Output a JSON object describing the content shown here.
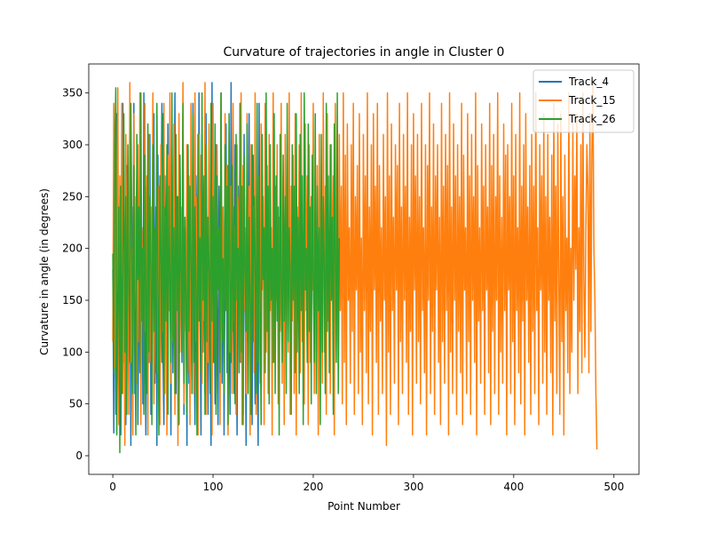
{
  "chart_data": {
    "type": "line",
    "title": "Curvature of trajectories in angle in Cluster 0",
    "xlabel": "Point Number",
    "ylabel": "Curvature in angle (in degrees)",
    "xlim": [
      -24,
      525
    ],
    "ylim": [
      -18,
      378
    ],
    "xticks": [
      0,
      100,
      200,
      300,
      400,
      500
    ],
    "yticks": [
      0,
      50,
      100,
      150,
      200,
      250,
      300,
      350
    ],
    "grid": false,
    "legend_position": "top-right",
    "series": [
      {
        "name": "Track_4",
        "color": "#1f77b4",
        "x_start": 0,
        "values": [
          180,
          22,
          300,
          40,
          330,
          120,
          60,
          250,
          20,
          180,
          340,
          90,
          210,
          30,
          280,
          150,
          70,
          320,
          10,
          240,
          110,
          340,
          60,
          190,
          270,
          30,
          160,
          300,
          80,
          220,
          50,
          350,
          130,
          20,
          260,
          180,
          90,
          310,
          40,
          200,
          150,
          330,
          70,
          240,
          10,
          290,
          120,
          60,
          210,
          340,
          100,
          30,
          270,
          170,
          50,
          320,
          140,
          230,
          20,
          300,
          80,
          190,
          350,
          60,
          250,
          110,
          30,
          280,
          170,
          90,
          330,
          40,
          220,
          140,
          10,
          300,
          70,
          250,
          180,
          60,
          340,
          120,
          30,
          270,
          200,
          80,
          350,
          150,
          20,
          310,
          100,
          240,
          60,
          330,
          170,
          40,
          280,
          130,
          10,
          360,
          90,
          220,
          50,
          300,
          160,
          30,
          260,
          120,
          350,
          70,
          230,
          20,
          190,
          320,
          80,
          280,
          140,
          40,
          360,
          100,
          220,
          60,
          300,
          170,
          20,
          260,
          130,
          340,
          90,
          210,
          40,
          310,
          150,
          10,
          270,
          110,
          330,
          70,
          200,
          30,
          290,
          160,
          50,
          250,
          120,
          10,
          340,
          80,
          230
        ]
      },
      {
        "name": "Track_15",
        "color": "#ff7f0e",
        "x_start": 0,
        "values": [
          110,
          340,
          85,
          300,
          160,
          355,
          30,
          270,
          120,
          340,
          60,
          230,
          10,
          310,
          150,
          280,
          40,
          360,
          90,
          200,
          20,
          330,
          140,
          250,
          70,
          300,
          110,
          350,
          30,
          220,
          180,
          60,
          340,
          120,
          270,
          20,
          310,
          90,
          240,
          150,
          350,
          50,
          200,
          130,
          330,
          80,
          260,
          30,
          300,
          170,
          120,
          340,
          60,
          230,
          20,
          290,
          140,
          350,
          70,
          210,
          110,
          320,
          40,
          260,
          180,
          10,
          330,
          100,
          240,
          150,
          360,
          50,
          200,
          120,
          300,
          80,
          270,
          30,
          340,
          160,
          220,
          60,
          350,
          110,
          250,
          20,
          310,
          140,
          290,
          70,
          200,
          130,
          360,
          40,
          230,
          90,
          320,
          150,
          260,
          20,
          340,
          110,
          270,
          60,
          300,
          170,
          210,
          30,
          350,
          120,
          240,
          80,
          330,
          150,
          280,
          20,
          310,
          100,
          260,
          60,
          340,
          130,
          220,
          40,
          300,
          170,
          250,
          90,
          350,
          30,
          280,
          140,
          220,
          60,
          330,
          110,
          260,
          20,
          300,
          150,
          240,
          80,
          350,
          40,
          270,
          130,
          210,
          70,
          320,
          160,
          250,
          30,
          340,
          100,
          280,
          60,
          310,
          140,
          220,
          20,
          350,
          90,
          260,
          150,
          300,
          50,
          230,
          120,
          340,
          70,
          270,
          30,
          310,
          160,
          220,
          100,
          350,
          40,
          260,
          130,
          290,
          60,
          330,
          20,
          240,
          150,
          300,
          80,
          350,
          110,
          210,
          50,
          320,
          140,
          270,
          30,
          300,
          90,
          250,
          160,
          340,
          60,
          220,
          120,
          280,
          20,
          310,
          150,
          240,
          70,
          350,
          100,
          260,
          40,
          330,
          130,
          210,
          60,
          300,
          160,
          270,
          20,
          340,
          110,
          230,
          80,
          310,
          140,
          260,
          50,
          350,
          90,
          290,
          30,
          320,
          150,
          220,
          70,
          300,
          120,
          340,
          40,
          250,
          160,
          280,
          60,
          330,
          100,
          210,
          30,
          310,
          140,
          270,
          80,
          350,
          50,
          240,
          120,
          300,
          20,
          330,
          160,
          260,
          90,
          340,
          40,
          280,
          130,
          220,
          60,
          310,
          150,
          250,
          10,
          350,
          100,
          270,
          40,
          320,
          140,
          230,
          70,
          300,
          160,
          280,
          30,
          340,
          110,
          240,
          60,
          310,
          150,
          260,
          90,
          350,
          40,
          230,
          120,
          300,
          20,
          330,
          160,
          270,
          70,
          310,
          110,
          250,
          50,
          340,
          140,
          220,
          80,
          300,
          20,
          280,
          150,
          350,
          60,
          240,
          120,
          320,
          40,
          270,
          160,
          300,
          90,
          230,
          30,
          340,
          110,
          260,
          70,
          310,
          140,
          280,
          20,
          350,
          100,
          240,
          60,
          320,
          150,
          270,
          40,
          300,
          120,
          250,
          80,
          340,
          30,
          290,
          160,
          220,
          60,
          330,
          110,
          270,
          40,
          310,
          150,
          250,
          90,
          350,
          20,
          280,
          130,
          220,
          70,
          320,
          140,
          260,
          40,
          300,
          160,
          240,
          80,
          340,
          30,
          280,
          120,
          310,
          60,
          250,
          150,
          350,
          40,
          270,
          100,
          230,
          70,
          320,
          140,
          290,
          20,
          300,
          160,
          250,
          60,
          340,
          110,
          270,
          30,
          310,
          140,
          220,
          80,
          350,
          50,
          260,
          130,
          300,
          20,
          330,
          150,
          240,
          90,
          280,
          40,
          310,
          120,
          260,
          60,
          350,
          140,
          220,
          30,
          300,
          160,
          270,
          70,
          330,
          100,
          250,
          40,
          310,
          150,
          230,
          80,
          290,
          20,
          340,
          130,
          260,
          60,
          320,
          170,
          40,
          330,
          110,
          250,
          20,
          290,
          140,
          210,
          80,
          350,
          60,
          200,
          100,
          320,
          150,
          270,
          180,
          330,
          60,
          220,
          120,
          300,
          80,
          350,
          170,
          95,
          220,
          300,
          260,
          80,
          330,
          120,
          290,
          360,
          200,
          150,
          60,
          6
        ]
      },
      {
        "name": "Track_26",
        "color": "#2ca02c",
        "x_start": 0,
        "values": [
          195,
          80,
          300,
          355,
          20,
          140,
          240,
          3,
          260,
          60,
          180,
          330,
          100,
          250,
          40,
          300,
          160,
          90,
          340,
          210,
          60,
          280,
          120,
          20,
          310,
          170,
          240,
          80,
          350,
          130,
          200,
          40,
          290,
          150,
          60,
          320,
          100,
          250,
          180,
          30,
          300,
          120,
          220,
          80,
          340,
          160,
          20,
          270,
          200,
          90,
          330,
          60,
          240,
          130,
          300,
          40,
          260,
          170,
          90,
          350,
          110,
          220,
          60,
          310,
          140,
          250,
          30,
          290,
          180,
          100,
          340,
          70,
          230,
          150,
          40,
          300,
          120,
          260,
          190,
          60,
          330,
          90,
          240,
          160,
          20,
          310,
          130,
          210,
          80,
          350,
          150,
          270,
          40,
          300,
          110,
          230,
          180,
          60,
          340,
          130,
          250,
          90,
          320,
          40,
          270,
          160,
          220,
          80,
          350,
          110,
          190,
          60,
          300,
          140,
          260,
          30,
          330,
          170,
          90,
          280,
          120,
          240,
          50,
          310,
          150,
          200,
          80,
          340,
          100,
          260,
          30,
          290,
          180,
          120,
          320,
          60,
          230,
          150,
          40,
          300,
          110,
          250,
          190,
          60,
          340,
          90,
          270,
          140,
          30,
          310,
          170,
          220,
          80,
          350,
          120,
          260,
          50,
          300,
          150,
          200,
          90,
          330,
          60,
          270,
          130,
          240,
          20,
          310,
          170,
          90,
          290,
          130,
          250,
          60,
          340,
          110,
          220,
          180,
          40,
          300,
          150,
          260,
          80,
          330,
          100,
          230,
          60,
          310,
          140,
          270,
          30,
          350,
          160,
          200,
          90,
          320,
          120,
          240,
          50,
          290,
          170,
          90,
          330,
          60,
          260,
          140,
          220,
          30,
          310,
          100,
          250,
          180,
          60,
          340,
          120,
          270,
          80,
          300,
          150,
          230,
          40,
          320,
          190,
          90,
          350,
          60,
          210
        ]
      }
    ]
  }
}
